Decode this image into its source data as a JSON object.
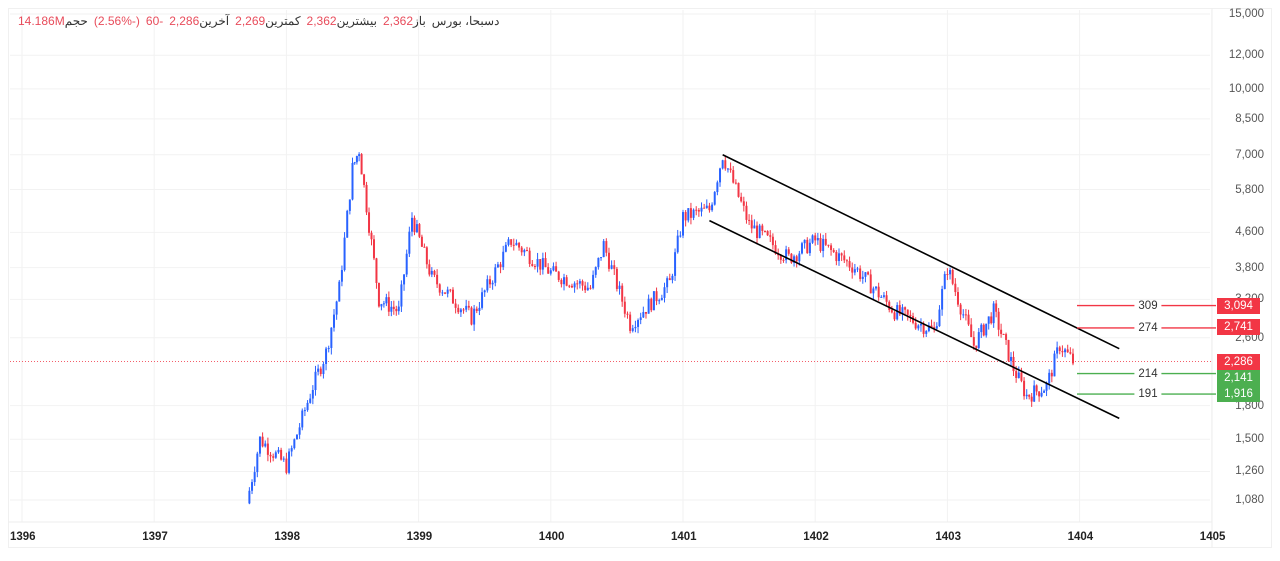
{
  "legend": {
    "symbol": "دسبحا، بورس",
    "open_label": "باز",
    "open": "2,362",
    "high_label": "بیشترین",
    "high": "2,362",
    "low_label": "کمترین",
    "low": "2,269",
    "close_label": "آخرین",
    "close": "2,286",
    "change": "-60",
    "change_pct": "(-2.56%)",
    "volume_label": "حجم",
    "volume": "14.186M"
  },
  "y_axis": {
    "ticks": [
      "15,000",
      "12,000",
      "10,000",
      "8,500",
      "7,000",
      "5,800",
      "4,600",
      "3,800",
      "3,200",
      "2,600",
      "1,800",
      "1,500",
      "1,260",
      "1,080"
    ]
  },
  "x_axis": {
    "ticks": [
      "1396",
      "1397",
      "1398",
      "1399",
      "1400",
      "1401",
      "1402",
      "1403",
      "1404",
      "1405"
    ]
  },
  "price_badges": [
    {
      "value": "3,094",
      "color": "#f23645"
    },
    {
      "value": "2,741",
      "color": "#f23645"
    },
    {
      "value": "2,286",
      "color": "#f23645"
    },
    {
      "value": "2,141",
      "color": "#4caf50"
    },
    {
      "value": "1,916",
      "color": "#4caf50"
    }
  ],
  "levels": [
    {
      "label": "309",
      "price": 3094,
      "color": "#f23645"
    },
    {
      "label": "274",
      "price": 2741,
      "color": "#f23645"
    },
    {
      "label": "214",
      "price": 2141,
      "color": "#4caf50"
    },
    {
      "label": "191",
      "price": 1916,
      "color": "#4caf50"
    }
  ],
  "colors": {
    "up": "#2962ff",
    "down": "#f23645",
    "channel": "#000000",
    "grid": "#f2f2f2",
    "last_price_line": "#f23645"
  },
  "chart_data": {
    "type": "candlestick",
    "title": "دسبحا، بورس",
    "xlabel": "",
    "ylabel": "",
    "y_scale": "log",
    "ylim": [
      1000,
      15000
    ],
    "x_ticks": [
      "1396",
      "1397",
      "1398",
      "1399",
      "1400",
      "1401",
      "1402",
      "1403",
      "1404",
      "1405"
    ],
    "y_ticks": [
      15000,
      12000,
      10000,
      8500,
      7000,
      5800,
      4600,
      3800,
      3200,
      2600,
      1800,
      1500,
      1260,
      1080
    ],
    "last_price": 2286,
    "ohlc_last": {
      "open": 2362,
      "high": 2362,
      "low": 2269,
      "close": 2286,
      "change": -60,
      "change_pct": -2.56,
      "volume": "14.186M"
    },
    "approx_close_path": [
      {
        "x": "1397.7",
        "close": 1060
      },
      {
        "x": "1397.8",
        "close": 1500
      },
      {
        "x": "1398.0",
        "close": 1300
      },
      {
        "x": "1398.2",
        "close": 2000
      },
      {
        "x": "1398.3",
        "close": 2400
      },
      {
        "x": "1398.4",
        "close": 3400
      },
      {
        "x": "1398.5",
        "close": 6500
      },
      {
        "x": "1398.55",
        "close": 7200
      },
      {
        "x": "1398.7",
        "close": 3200
      },
      {
        "x": "1398.85",
        "close": 3000
      },
      {
        "x": "1398.95",
        "close": 5000
      },
      {
        "x": "1399.1",
        "close": 3600
      },
      {
        "x": "1399.4",
        "close": 2900
      },
      {
        "x": "1399.7",
        "close": 4400
      },
      {
        "x": "1400.0",
        "close": 3700
      },
      {
        "x": "1400.3",
        "close": 3400
      },
      {
        "x": "1400.4",
        "close": 4300
      },
      {
        "x": "1400.6",
        "close": 2800
      },
      {
        "x": "1400.9",
        "close": 3500
      },
      {
        "x": "1401.0",
        "close": 5000
      },
      {
        "x": "1401.2",
        "close": 5200
      },
      {
        "x": "1401.3",
        "close": 7000
      },
      {
        "x": "1401.5",
        "close": 4800
      },
      {
        "x": "1401.8",
        "close": 4000
      },
      {
        "x": "1402.0",
        "close": 4400
      },
      {
        "x": "1402.3",
        "close": 3800
      },
      {
        "x": "1402.6",
        "close": 3000
      },
      {
        "x": "1402.9",
        "close": 2700
      },
      {
        "x": "1403.0",
        "close": 3800
      },
      {
        "x": "1403.2",
        "close": 2500
      },
      {
        "x": "1403.35",
        "close": 3000
      },
      {
        "x": "1403.5",
        "close": 2200
      },
      {
        "x": "1403.6",
        "close": 1900
      },
      {
        "x": "1403.75",
        "close": 2000
      },
      {
        "x": "1403.85",
        "close": 2500
      },
      {
        "x": "1403.95",
        "close": 2286
      }
    ],
    "annotations": [
      {
        "type": "trend_channel",
        "upper": [
          {
            "x": "1401.3",
            "price": 7000
          },
          {
            "x": "1404.3",
            "price": 2450
          }
        ],
        "lower": [
          {
            "x": "1401.2",
            "price": 4900
          },
          {
            "x": "1404.3",
            "price": 1680
          }
        ]
      },
      {
        "type": "hline",
        "price": 3094,
        "label": "309"
      },
      {
        "type": "hline",
        "price": 2741,
        "label": "274"
      },
      {
        "type": "hline",
        "price": 2141,
        "label": "214"
      },
      {
        "type": "hline",
        "price": 1916,
        "label": "191"
      }
    ]
  }
}
